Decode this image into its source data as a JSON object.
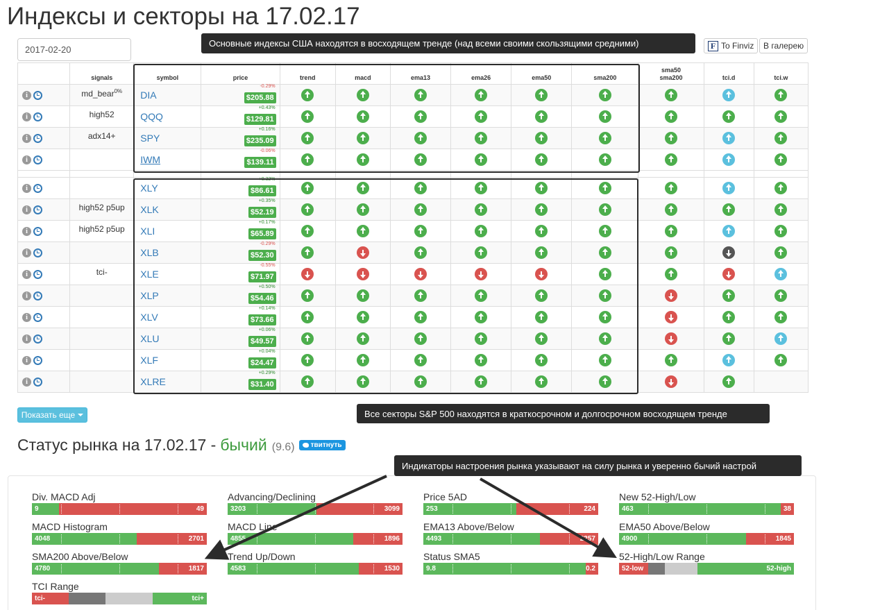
{
  "page": {
    "title": "Индексы и секторы на 17.02.17"
  },
  "date_picker": {
    "value": "2017-02-20",
    "calendar_icon": "calendar-icon"
  },
  "buttons": {
    "finviz": "To Finviz",
    "finviz_logo": "F",
    "gallery": "В галерею",
    "show_more": "Показать еще"
  },
  "annotations": {
    "tip1": "Основные индексы США находятся в восходящем тренде (над всеми своими скользящими средними)",
    "tip2": "Все секторы S&P 500 находятся в краткосрочном и долгосрочном восходящем тренде",
    "tip3": "Индикаторы настроения рынка указывают на силу рынка и уверенно бычий настрой"
  },
  "table": {
    "headers": {
      "signals": "signals",
      "symbol": "symbol",
      "price": "price",
      "trend": "trend",
      "macd": "macd",
      "ema13": "ema13",
      "ema26": "ema26",
      "ema50": "ema50",
      "sma200": "sma200",
      "sma_cross_1": "sma50",
      "sma_cross_2": "sma200",
      "tci_d": "tci.d",
      "tci_w": "tci.w"
    },
    "info_icon_glyph": "i",
    "indices": [
      {
        "signal": "md_bear",
        "signal_sup": "0%",
        "symbol": "DIA",
        "change": "-0.29%",
        "price": "$205.88",
        "ind": [
          "g-up",
          "g-up",
          "g-up",
          "g-up",
          "g-up",
          "g-up",
          "g-up",
          "b-up",
          "g-up"
        ]
      },
      {
        "signal": "high52",
        "signal_sup": "",
        "symbol": "QQQ",
        "change": "+0.43%",
        "price": "$129.81",
        "ind": [
          "g-up",
          "g-up",
          "g-up",
          "g-up",
          "g-up",
          "g-up",
          "g-up",
          "g-up",
          "g-up"
        ]
      },
      {
        "signal": "adx14+",
        "signal_sup": "",
        "symbol": "SPY",
        "change": "+0.16%",
        "price": "$235.09",
        "ind": [
          "g-up",
          "g-up",
          "g-up",
          "g-up",
          "g-up",
          "g-up",
          "g-up",
          "b-up",
          "g-up"
        ]
      },
      {
        "signal": "",
        "signal_sup": "",
        "symbol": "IWM",
        "change": "-0.06%",
        "price": "$139.11",
        "ind": [
          "g-up",
          "g-up",
          "g-up",
          "g-up",
          "g-up",
          "g-up",
          "g-up",
          "b-up",
          "g-up"
        ]
      }
    ],
    "sectors": [
      {
        "signal": "",
        "symbol": "XLY",
        "change": "+0.32%",
        "price": "$86.61",
        "ind": [
          "g-up",
          "g-up",
          "g-up",
          "g-up",
          "g-up",
          "g-up",
          "g-up",
          "b-up",
          "g-up"
        ]
      },
      {
        "signal": "high52 p5up",
        "symbol": "XLK",
        "change": "+0.35%",
        "price": "$52.19",
        "ind": [
          "g-up",
          "g-up",
          "g-up",
          "g-up",
          "g-up",
          "g-up",
          "g-up",
          "g-up",
          "g-up"
        ]
      },
      {
        "signal": "high52 p5up",
        "symbol": "XLI",
        "change": "+0.17%",
        "price": "$65.89",
        "ind": [
          "g-up",
          "g-up",
          "g-up",
          "g-up",
          "g-up",
          "g-up",
          "g-up",
          "b-up",
          "g-up"
        ]
      },
      {
        "signal": "",
        "symbol": "XLB",
        "change": "-0.29%",
        "price": "$52.30",
        "ind": [
          "g-up",
          "r-down",
          "g-up",
          "g-up",
          "g-up",
          "g-up",
          "g-up",
          "d-down",
          "g-up"
        ]
      },
      {
        "signal": "tci-",
        "symbol": "XLE",
        "change": "-0.55%",
        "price": "$71.97",
        "ind": [
          "r-down",
          "r-down",
          "r-down",
          "r-down",
          "r-down",
          "g-up",
          "g-up",
          "r-down",
          "b-up"
        ]
      },
      {
        "signal": "",
        "symbol": "XLP",
        "change": "+0.50%",
        "price": "$54.46",
        "ind": [
          "g-up",
          "g-up",
          "g-up",
          "g-up",
          "g-up",
          "g-up",
          "r-down",
          "g-up",
          "g-up"
        ]
      },
      {
        "signal": "",
        "symbol": "XLV",
        "change": "+0.14%",
        "price": "$73.66",
        "ind": [
          "g-up",
          "g-up",
          "g-up",
          "g-up",
          "g-up",
          "g-up",
          "r-down",
          "g-up",
          "g-up"
        ]
      },
      {
        "signal": "",
        "symbol": "XLU",
        "change": "+0.06%",
        "price": "$49.57",
        "ind": [
          "g-up",
          "g-up",
          "g-up",
          "g-up",
          "g-up",
          "g-up",
          "r-down",
          "g-up",
          "b-up"
        ]
      },
      {
        "signal": "",
        "symbol": "XLF",
        "change": "+0.04%",
        "price": "$24.47",
        "ind": [
          "g-up",
          "g-up",
          "g-up",
          "g-up",
          "g-up",
          "g-up",
          "g-up",
          "b-up",
          "g-up"
        ]
      },
      {
        "signal": "",
        "symbol": "XLRE",
        "change": "+0.29%",
        "price": "$31.40",
        "ind": [
          "g-up",
          "g-up",
          "g-up",
          "g-up",
          "g-up",
          "g-up",
          "r-down",
          "g-up",
          ""
        ]
      }
    ]
  },
  "market_status": {
    "prefix": "Статус рынка на 17.02.17 -",
    "value": "бычий",
    "score": "(9.6)",
    "tweet": "твитнуть"
  },
  "indicators": [
    {
      "label": "Div. MACD Adj",
      "left": "9",
      "right": "49",
      "col": 0,
      "row": 0
    },
    {
      "label": "MACD Histogram",
      "left": "4048",
      "right": "2701",
      "col": 0,
      "row": 1
    },
    {
      "label": "SMA200 Above/Below",
      "left": "4780",
      "right": "1817",
      "col": 0,
      "row": 2
    },
    {
      "label": "Advancing/Declining",
      "left": "3203",
      "right": "3099",
      "col": 1,
      "row": 0
    },
    {
      "label": "MACD Line",
      "left": "4855",
      "right": "1896",
      "col": 1,
      "row": 1
    },
    {
      "label": "Trend Up/Down",
      "left": "4583",
      "right": "1530",
      "col": 1,
      "row": 2
    },
    {
      "label": "Price 5AD",
      "left": "253",
      "right": "224",
      "col": 2,
      "row": 0
    },
    {
      "label": "EMA13 Above/Below",
      "left": "4493",
      "right": "2257",
      "col": 2,
      "row": 1
    },
    {
      "label": "Status SMA5",
      "left": "9.8",
      "right": "0.2",
      "col": 2,
      "row": 2
    },
    {
      "label": "New 52-High/Low",
      "left": "463",
      "right": "38",
      "col": 3,
      "row": 0
    },
    {
      "label": "EMA50 Above/Below",
      "left": "4900",
      "right": "1845",
      "col": 3,
      "row": 1
    }
  ],
  "range_indicators": [
    {
      "label": "52-High/Low Range",
      "left": "52-low",
      "right": "52-high"
    },
    {
      "label": "TCI Range",
      "left": "tci-",
      "right": "tci+"
    }
  ]
}
